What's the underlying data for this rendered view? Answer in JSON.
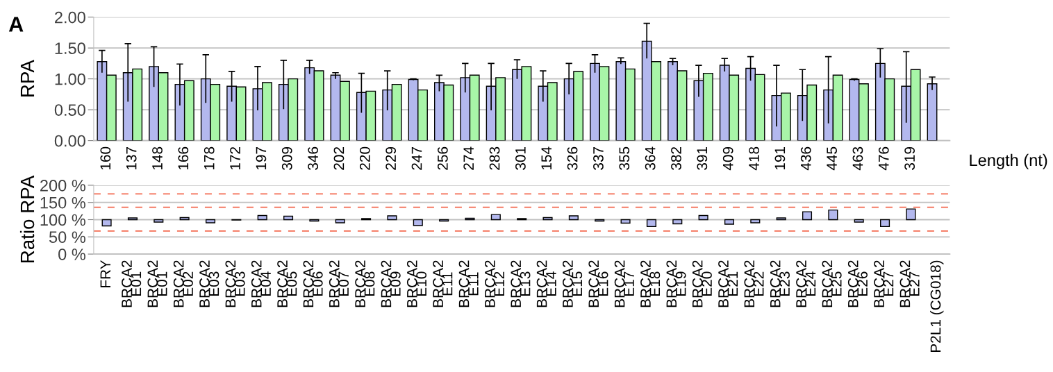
{
  "chart_data": [
    {
      "type": "bar",
      "ylabel": "RPA",
      "xlabel": "Length (nt)",
      "annotations": [
        "A"
      ],
      "categories": [
        "160",
        "137",
        "148",
        "166",
        "178",
        "172",
        "197",
        "309",
        "346",
        "202",
        "220",
        "229",
        "247",
        "256",
        "274",
        "283",
        "301",
        "154",
        "326",
        "337",
        "355",
        "364",
        "382",
        "391",
        "409",
        "418",
        "191",
        "436",
        "445",
        "463",
        "476",
        "319",
        null
      ],
      "series": [
        {
          "color": "#b3b8ee",
          "values": [
            1.28,
            1.1,
            1.2,
            0.91,
            1.0,
            0.88,
            0.84,
            0.91,
            1.18,
            1.06,
            0.78,
            0.82,
            0.99,
            0.94,
            1.02,
            0.88,
            1.15,
            0.88,
            1.0,
            1.25,
            1.28,
            1.61,
            1.28,
            0.97,
            1.22,
            1.17,
            0.73,
            0.73,
            0.82,
            0.99,
            1.25,
            0.88,
            0.92
          ],
          "errors": [
            [
              1.1,
              1.46
            ],
            [
              0.63,
              1.57
            ],
            [
              0.87,
              1.52
            ],
            [
              0.57,
              1.24
            ],
            [
              0.61,
              1.39
            ],
            [
              0.63,
              1.12
            ],
            [
              0.49,
              1.2
            ],
            [
              0.51,
              1.3
            ],
            [
              1.08,
              1.3
            ],
            [
              1.0,
              1.1
            ],
            [
              0.45,
              1.09
            ],
            [
              0.49,
              1.13
            ],
            [
              0.98,
              1.0
            ],
            [
              0.8,
              1.06
            ],
            [
              0.78,
              1.25
            ],
            [
              0.49,
              1.25
            ],
            [
              1.0,
              1.31
            ],
            [
              0.63,
              1.13
            ],
            [
              0.75,
              1.25
            ],
            [
              1.1,
              1.39
            ],
            [
              1.24,
              1.34
            ],
            [
              1.33,
              1.9
            ],
            [
              1.22,
              1.33
            ],
            [
              0.71,
              1.22
            ],
            [
              1.12,
              1.33
            ],
            [
              0.97,
              1.36
            ],
            [
              0.23,
              1.22
            ],
            [
              0.32,
              1.15
            ],
            [
              0.28,
              1.36
            ],
            [
              0.97,
              1.0
            ],
            [
              1.02,
              1.49
            ],
            [
              0.29,
              1.44
            ],
            [
              0.82,
              1.03
            ]
          ]
        },
        {
          "color": "#a8f5a8",
          "values": [
            1.06,
            1.16,
            1.1,
            0.97,
            0.91,
            0.87,
            0.94,
            1.0,
            1.13,
            0.96,
            0.8,
            0.91,
            0.82,
            0.9,
            1.06,
            1.02,
            1.2,
            0.94,
            1.12,
            1.2,
            1.16,
            1.28,
            1.13,
            1.09,
            1.06,
            1.07,
            0.77,
            0.9,
            1.06,
            0.92,
            1.0,
            1.15,
            null
          ]
        }
      ],
      "ylim": [
        0,
        2
      ],
      "yticks": [
        {
          "value": 0,
          "label": "0.00"
        },
        {
          "value": 0.5,
          "label": "0.50"
        },
        {
          "value": 1,
          "label": "1.00"
        },
        {
          "value": 1.5,
          "label": "1.50"
        },
        {
          "value": 2,
          "label": "2.00"
        }
      ],
      "grid": "y"
    },
    {
      "type": "bar",
      "ylabel": "Ratio RPA",
      "categories": [
        "FRY",
        "BRCA2\nE01",
        "BRCA2\nE01",
        "BRCA2\nE02",
        "BRCA2\nE03",
        "BRCA2\nE03",
        "BRCA2\nE04",
        "BRCA2\nE05",
        "BRCA2\nE06",
        "BRCA2\nE07",
        "BRCA2\nE08",
        "BRCA2\nE09",
        "BRCA2\nE10",
        "BRCA2\nE11",
        "BRCA2\nE11",
        "BRCA2\nE12",
        "BRCA2\nE13",
        "BRCA2\nE14",
        "BRCA2\nE15",
        "BRCA2\nE16",
        "BRCA2\nE17",
        "BRCA2\nE18",
        "BRCA2\nE19",
        "BRCA2\nE20",
        "BRCA2\nE21",
        "BRCA2\nE22",
        "BRCA2\nE23",
        "BRCA2\nE24",
        "BRCA2\nE25",
        "BRCA2\nE26",
        "BRCA2\nE27",
        "BRCA2\nE27",
        "P2L1 (CG018)"
      ],
      "series": [
        {
          "color": "#b3b8ee",
          "values": [
            -18,
            5,
            -7,
            6,
            -9,
            -1,
            12,
            10,
            -4,
            -9,
            3,
            11,
            -17,
            -4,
            4,
            15,
            3,
            6,
            11,
            -4,
            -10,
            -20,
            -12,
            12,
            -13,
            -9,
            5,
            23,
            28,
            -7,
            -20,
            31,
            null
          ],
          "base": [
            100,
            100,
            100,
            100,
            100,
            100,
            100,
            100,
            100,
            100,
            100,
            100,
            100,
            100,
            100,
            100,
            100,
            100,
            100,
            100,
            100,
            100,
            100,
            100,
            100,
            100,
            100,
            100,
            100,
            100,
            100,
            100,
            null
          ]
        }
      ],
      "ylim": [
        0,
        200
      ],
      "yticks": [
        {
          "value": 0,
          "label": "0 %"
        },
        {
          "value": 50,
          "label": "50 %"
        },
        {
          "value": 100,
          "label": "100 %"
        },
        {
          "value": 150,
          "label": "150 %"
        },
        {
          "value": 200,
          "label": "200 %"
        }
      ],
      "ref_lines": [
        {
          "axis": "y",
          "value": 175,
          "color": "#f4694f",
          "line_style": "dashed"
        },
        {
          "axis": "y",
          "value": 136,
          "color": "#f4694f",
          "line_style": "dashed"
        },
        {
          "axis": "y",
          "value": 67,
          "color": "#f4694f",
          "line_style": "dashed"
        }
      ],
      "grid": "y"
    }
  ]
}
